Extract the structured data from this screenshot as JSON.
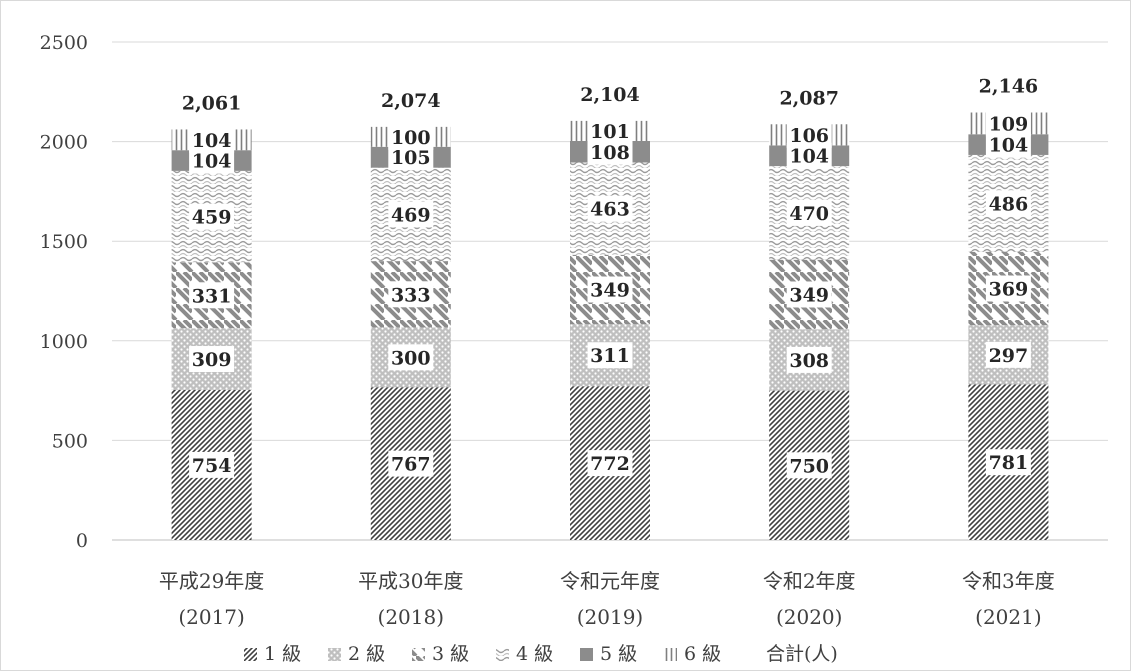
{
  "chart_data": {
    "type": "bar",
    "stacked": true,
    "categories": [
      [
        "平成29年度",
        "(2017)"
      ],
      [
        "平成30年度",
        "(2018)"
      ],
      [
        "令和元年度",
        "(2019)"
      ],
      [
        "令和2年度",
        "(2020)"
      ],
      [
        "令和3年度",
        "(2021)"
      ]
    ],
    "series": [
      {
        "name": "1 級",
        "values": [
          754,
          767,
          772,
          750,
          781
        ],
        "pattern": "diag-dense"
      },
      {
        "name": "2 級",
        "values": [
          309,
          300,
          311,
          308,
          297
        ],
        "pattern": "dots"
      },
      {
        "name": "3 級",
        "values": [
          331,
          333,
          349,
          349,
          369
        ],
        "pattern": "diag-wide"
      },
      {
        "name": "4 級",
        "values": [
          459,
          469,
          463,
          470,
          486
        ],
        "pattern": "wave"
      },
      {
        "name": "5 級",
        "values": [
          104,
          105,
          108,
          104,
          104
        ],
        "pattern": "solid"
      },
      {
        "name": "6 級",
        "values": [
          104,
          100,
          101,
          106,
          109
        ],
        "pattern": "vlines"
      }
    ],
    "totals": {
      "name": "合計(人)",
      "values": [
        "2,061",
        "2,074",
        "2,104",
        "2,087",
        "2,146"
      ]
    },
    "yticks": [
      0,
      500,
      1000,
      1500,
      2000,
      2500
    ],
    "ylim": [
      0,
      2500
    ],
    "grid": true,
    "legend_position": "bottom",
    "colors": {
      "primary": "#595959",
      "secondary": "#a6a6a6",
      "grid": "#d9d9d9",
      "text": "#404040"
    }
  }
}
